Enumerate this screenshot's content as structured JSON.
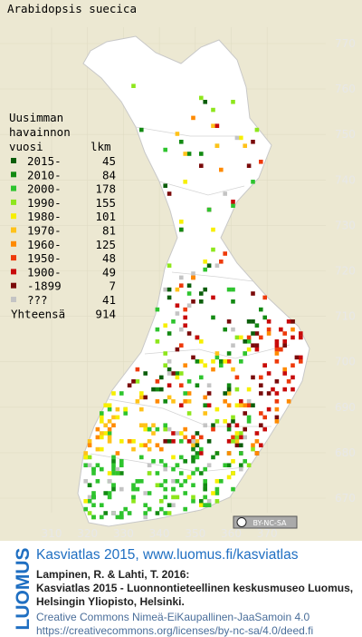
{
  "title": "Arabidopsis suecica",
  "legend": {
    "heading": [
      "Uusimman",
      "havainnon"
    ],
    "column_period": "vuosi",
    "column_count": "lkm",
    "entries": [
      {
        "label": "2015-",
        "count": 45,
        "color": "#0b5e0b"
      },
      {
        "label": "2010-",
        "count": 84,
        "color": "#138a13"
      },
      {
        "label": "2000-",
        "count": 178,
        "color": "#2ec42e"
      },
      {
        "label": "1990-",
        "count": 155,
        "color": "#8ee61c"
      },
      {
        "label": "1980-",
        "count": 101,
        "color": "#f7ef00"
      },
      {
        "label": "1970-",
        "count": 81,
        "color": "#ffc21a"
      },
      {
        "label": "1960-",
        "count": 125,
        "color": "#ff8a00"
      },
      {
        "label": "1950-",
        "count": 48,
        "color": "#ee3a0a"
      },
      {
        "label": "1900-",
        "count": 49,
        "color": "#c80a0a"
      },
      {
        "label": "-1899",
        "count": 7,
        "color": "#7a0a0a"
      },
      {
        "label": "???",
        "count": 41,
        "color": "#c4c4c4"
      }
    ],
    "total_label": "Yhteensä",
    "total": 914
  },
  "map": {
    "y_ticks": [
      770,
      760,
      750,
      740,
      730,
      720,
      710,
      700,
      690,
      680,
      670
    ],
    "x_ticks": [
      310,
      320,
      330,
      340,
      350,
      360,
      370
    ],
    "license_badge": "BY-NC-SA"
  },
  "footer": {
    "logo": "LUOMUS",
    "link": "Kasviatlas 2015, www.luomus.fi/kasviatlas",
    "citation": [
      "Lampinen, R. & Lahti, T. 2016:",
      "Kasviatlas 2015 - Luonnontieteellinen keskusmuseo Luomus,",
      "Helsingin Yliopisto, Helsinki."
    ],
    "license": [
      "Creative Commons Nimeä-EiKaupallinen-JaaSamoin 4.0",
      "https://creativecommons.org/licenses/by-nc-sa/4.0/deed.fi"
    ]
  }
}
